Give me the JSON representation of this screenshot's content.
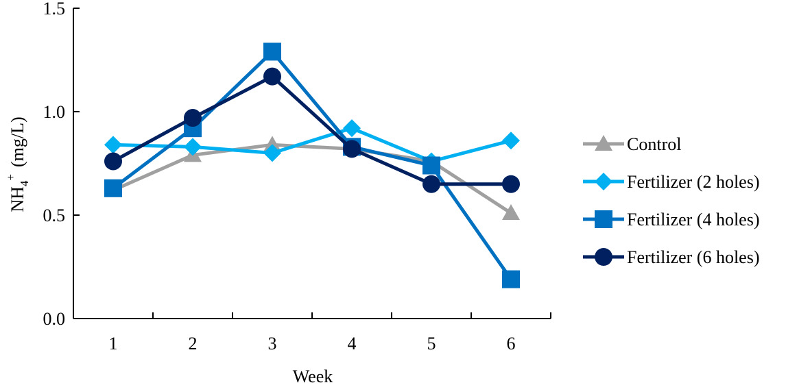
{
  "chart_data": {
    "type": "line",
    "title": "",
    "xlabel": "Week",
    "ylabel_main": "NH",
    "ylabel_sub": "4",
    "ylabel_sup": "+",
    "ylabel_unit": "(mg/L)",
    "categories": [
      "1",
      "2",
      "3",
      "4",
      "5",
      "6"
    ],
    "ylim": [
      0,
      1.5
    ],
    "yticks": [
      "0.0",
      "0.5",
      "1.0",
      "1.5"
    ],
    "grid": false,
    "legend_position": "right",
    "series": [
      {
        "name": "Control",
        "color": "#A0A0A0",
        "marker": "triangle",
        "values": [
          0.62,
          0.79,
          0.84,
          0.82,
          0.76,
          0.51
        ]
      },
      {
        "name": "Fertilizer (2 holes)",
        "color": "#00B0F0",
        "marker": "diamond",
        "values": [
          0.84,
          0.83,
          0.8,
          0.92,
          0.76,
          0.86
        ]
      },
      {
        "name": "Fertilizer (4 holes)",
        "color": "#0070C0",
        "marker": "square",
        "values": [
          0.63,
          0.92,
          1.29,
          0.83,
          0.74,
          0.19
        ]
      },
      {
        "name": "Fertilizer (6 holes)",
        "color": "#002060",
        "marker": "circle",
        "values": [
          0.76,
          0.97,
          1.17,
          0.82,
          0.65,
          0.65
        ]
      }
    ]
  }
}
